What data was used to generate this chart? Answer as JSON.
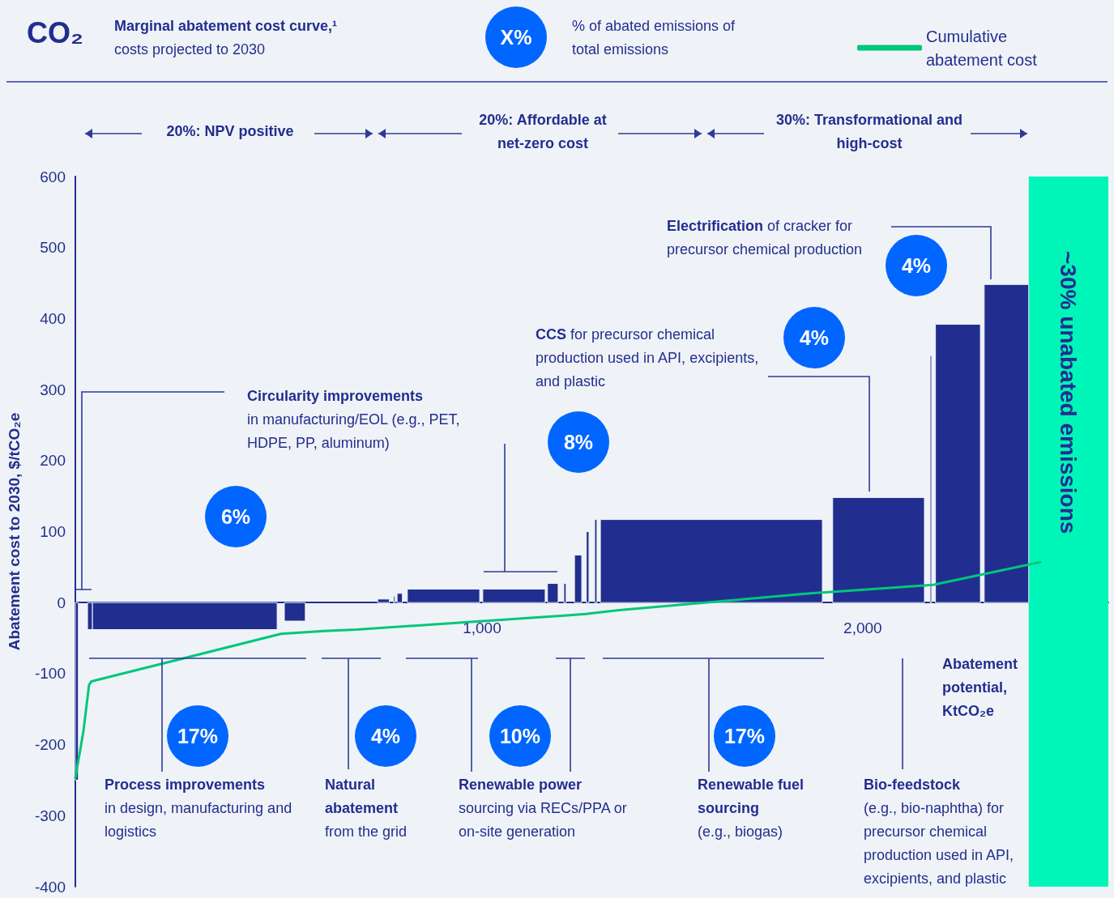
{
  "chart_data": {
    "type": "histogram",
    "title": "Marginal abatement cost curve,¹",
    "subtitle": "costs projected to 2030",
    "ylabel": "Abatement cost to 2030, $/tCO₂e",
    "xlabel": "Abatement potential, KtCO₂e",
    "bins": [
      -68,
      -60,
      -36,
      -23,
      462,
      481,
      536,
      726,
      757,
      768,
      772,
      777,
      791,
      804,
      994,
      1002,
      1166,
      1172,
      1200,
      1215,
      1221,
      1243,
      1262,
      1274,
      1281,
      1296,
      1302,
      1311,
      1894,
      1921,
      2162,
      2177,
      2181,
      2191,
      2309,
      2319,
      2436
    ],
    "values": [
      -250,
      null,
      -38,
      -38,
      null,
      -26,
      null,
      5,
      null,
      9,
      null,
      13,
      null,
      19,
      null,
      19,
      null,
      27,
      null,
      27,
      null,
      67,
      null,
      100,
      null,
      117,
      null,
      117,
      null,
      148,
      null,
      348,
      null,
      392,
      null,
      448
    ],
    "color": "#212e8f",
    "series": [
      {
        "name": "Cumulative abatement cost",
        "type": "line",
        "color": "#00c77a",
        "x": [
          -68,
          -47,
          -32,
          -26,
          472,
          585,
          670,
          1223,
          1272,
          1372,
          1585,
          1862,
          2185,
          2466
        ],
        "values": [
          -247,
          -182,
          -116,
          -111,
          -44,
          -40,
          -38,
          -18,
          -16,
          -10,
          0,
          13,
          25,
          57
        ]
      }
    ],
    "xlim": [
      -68,
      2645
    ],
    "ylim": [
      -400,
      600
    ],
    "xticks": [
      {
        "value": 1000,
        "label": "1,000"
      },
      {
        "value": 2000,
        "label": "2,000"
      }
    ],
    "yticks": [
      -400,
      -300,
      -200,
      -100,
      0,
      100,
      200,
      300,
      400,
      500,
      600
    ],
    "bands": [
      {
        "axis": "x",
        "from": 2436,
        "to": 2645,
        "label": "~30% unabated emissions",
        "color": "#00f5b8"
      }
    ],
    "legend": "top right",
    "marker": "none",
    "line_style": "solid",
    "annotations": [
      "CO₂",
      "X%",
      "% of abated emissions of total emissions",
      "20%: NPV positive",
      "20%: Affordable at net-zero cost",
      "30%: Transformational and high-cost",
      "Circularity improvements",
      "in manufacturing/EOL (e.g., PET, HDPE, PP, aluminum)",
      "6%",
      "8%",
      "CCS",
      "for precursor chemical production used in API, excipients, and plastic",
      "4%",
      "Electrification",
      "of cracker for precursor chemical production",
      "4%",
      "17%",
      "Process improvements",
      "in design, manufacturing and logistics",
      "4%",
      "Natural abatement",
      "from the grid",
      "10%",
      "Renewable power",
      "sourcing via RECs/PPA or on-site generation",
      "17%",
      "Renewable fuel sourcing",
      "(e.g., biogas)",
      "Bio-feedstock",
      "(e.g., bio-naphtha) for precursor chemical production used in API, excipients, and plastic"
    ]
  }
}
